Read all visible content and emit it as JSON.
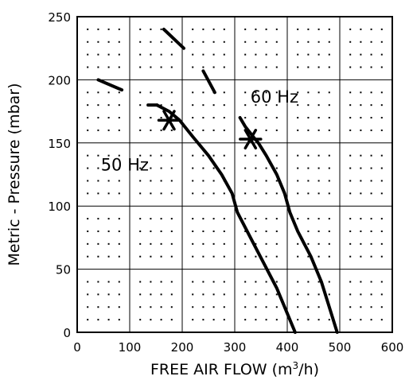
{
  "chart_data": {
    "type": "line",
    "title": "",
    "xlabel": "FREE AIR FLOW (m³/h)",
    "xlabel_parts": {
      "before": "FREE AIR FLOW (m",
      "sup": "3",
      "after": "/h)"
    },
    "ylabel": "Metric - Pressure (mbar)",
    "xlim": [
      0,
      600
    ],
    "ylim": [
      0,
      250
    ],
    "x_ticks": [
      0,
      100,
      200,
      300,
      400,
      500,
      600
    ],
    "y_ticks": [
      0,
      50,
      100,
      150,
      200,
      250
    ],
    "x_tick_labels": [
      "0",
      "100",
      "200",
      "300",
      "400",
      "500",
      "600"
    ],
    "y_tick_labels": [
      "0",
      "50",
      "100",
      "150",
      "200",
      "250"
    ],
    "grid": true,
    "series": [
      {
        "name": "50 Hz",
        "color": "#000000",
        "points": [
          [
            415,
            0
          ],
          [
            400,
            15
          ],
          [
            380,
            35
          ],
          [
            355,
            55
          ],
          [
            330,
            75
          ],
          [
            305,
            95
          ],
          [
            295,
            110
          ],
          [
            275,
            125
          ],
          [
            250,
            140
          ],
          [
            220,
            155
          ],
          [
            195,
            168
          ],
          [
            175,
            175
          ],
          [
            152,
            180
          ]
        ],
        "dashed_tail": [
          [
            [
              135,
              180
            ],
            [
              152,
              180
            ]
          ],
          [
            [
              40,
              200
            ],
            [
              85,
              192
            ]
          ]
        ],
        "operating_point": [
          175,
          168
        ]
      },
      {
        "name": "60 Hz",
        "color": "#000000",
        "points": [
          [
            495,
            0
          ],
          [
            480,
            20
          ],
          [
            465,
            40
          ],
          [
            445,
            60
          ],
          [
            420,
            80
          ],
          [
            405,
            95
          ],
          [
            395,
            110
          ],
          [
            380,
            125
          ],
          [
            360,
            140
          ],
          [
            345,
            150
          ],
          [
            335,
            155
          ],
          [
            320,
            163
          ],
          [
            310,
            170
          ]
        ],
        "dashed_tail": [
          [
            [
              240,
              207
            ],
            [
              262,
              190
            ]
          ],
          [
            [
              165,
              240
            ],
            [
              203,
              225
            ]
          ]
        ],
        "operating_point": [
          330,
          153
        ]
      }
    ],
    "annotations": [
      {
        "text": "50 Hz",
        "x": 45,
        "y": 128
      },
      {
        "text": "60 Hz",
        "x": 330,
        "y": 182
      }
    ]
  }
}
